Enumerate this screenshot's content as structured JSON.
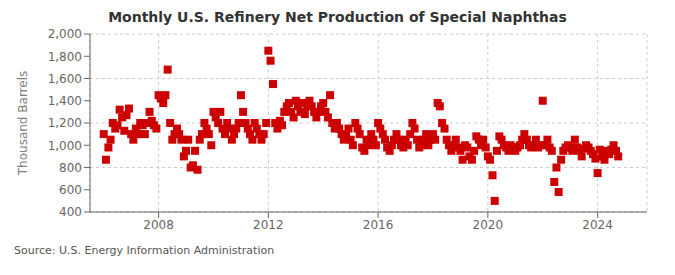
{
  "chart_data": {
    "type": "scatter",
    "title": "Monthly U.S. Refinery Net Production of Special Naphthas",
    "ylabel": "Thousand Barrels",
    "annotations": [
      "Source: U.S. Energy Information Administration"
    ],
    "color": "#cc0000",
    "marker": "square",
    "grid": true,
    "xlim": [
      2005.5,
      2025.8
    ],
    "xticks": [
      2008,
      2012,
      2016,
      2020,
      2024
    ],
    "ylim": [
      400,
      2000
    ],
    "yticks": [
      400,
      600,
      800,
      {
        "value": 1000,
        "label": "1,000"
      },
      {
        "value": 1200,
        "label": "1,200"
      },
      {
        "value": 1400,
        "label": "1,400"
      },
      {
        "value": 1600,
        "label": "1,600"
      },
      {
        "value": 1800,
        "label": "1,800"
      },
      {
        "value": 2000,
        "label": "2,000"
      }
    ],
    "x": [
      2006.0,
      2006.08,
      2006.17,
      2006.25,
      2006.33,
      2006.42,
      2006.5,
      2006.58,
      2006.67,
      2006.75,
      2006.83,
      2006.92,
      2007.0,
      2007.08,
      2007.17,
      2007.25,
      2007.33,
      2007.42,
      2007.5,
      2007.58,
      2007.67,
      2007.75,
      2007.83,
      2007.92,
      2008.0,
      2008.08,
      2008.17,
      2008.25,
      2008.33,
      2008.42,
      2008.5,
      2008.58,
      2008.67,
      2008.75,
      2008.83,
      2008.92,
      2009.0,
      2009.08,
      2009.17,
      2009.25,
      2009.33,
      2009.42,
      2009.5,
      2009.58,
      2009.67,
      2009.75,
      2009.83,
      2009.92,
      2010.0,
      2010.08,
      2010.17,
      2010.25,
      2010.33,
      2010.42,
      2010.5,
      2010.58,
      2010.67,
      2010.75,
      2010.83,
      2010.92,
      2011.0,
      2011.08,
      2011.17,
      2011.25,
      2011.33,
      2011.42,
      2011.5,
      2011.58,
      2011.67,
      2011.75,
      2011.83,
      2011.92,
      2012.0,
      2012.08,
      2012.17,
      2012.25,
      2012.33,
      2012.42,
      2012.5,
      2012.58,
      2012.67,
      2012.75,
      2012.83,
      2012.92,
      2013.0,
      2013.08,
      2013.17,
      2013.25,
      2013.33,
      2013.42,
      2013.5,
      2013.58,
      2013.67,
      2013.75,
      2013.83,
      2013.92,
      2014.0,
      2014.08,
      2014.17,
      2014.25,
      2014.33,
      2014.42,
      2014.5,
      2014.58,
      2014.67,
      2014.75,
      2014.83,
      2014.92,
      2015.0,
      2015.08,
      2015.17,
      2015.25,
      2015.33,
      2015.42,
      2015.5,
      2015.58,
      2015.67,
      2015.75,
      2015.83,
      2015.92,
      2016.0,
      2016.08,
      2016.17,
      2016.25,
      2016.33,
      2016.42,
      2016.5,
      2016.58,
      2016.67,
      2016.75,
      2016.83,
      2016.92,
      2017.0,
      2017.08,
      2017.17,
      2017.25,
      2017.33,
      2017.42,
      2017.5,
      2017.58,
      2017.67,
      2017.75,
      2017.83,
      2017.92,
      2018.0,
      2018.08,
      2018.17,
      2018.25,
      2018.33,
      2018.42,
      2018.5,
      2018.58,
      2018.67,
      2018.75,
      2018.83,
      2018.92,
      2019.0,
      2019.08,
      2019.17,
      2019.25,
      2019.33,
      2019.42,
      2019.5,
      2019.58,
      2019.67,
      2019.75,
      2019.83,
      2019.92,
      2020.0,
      2020.08,
      2020.17,
      2020.25,
      2020.33,
      2020.42,
      2020.5,
      2020.58,
      2020.67,
      2020.75,
      2020.83,
      2020.92,
      2021.0,
      2021.08,
      2021.17,
      2021.25,
      2021.33,
      2021.42,
      2021.5,
      2021.58,
      2021.67,
      2021.75,
      2021.83,
      2021.92,
      2022.0,
      2022.08,
      2022.17,
      2022.25,
      2022.33,
      2022.42,
      2022.5,
      2022.58,
      2022.67,
      2022.75,
      2022.83,
      2022.92,
      2023.0,
      2023.08,
      2023.17,
      2023.25,
      2023.33,
      2023.42,
      2023.5,
      2023.58,
      2023.67,
      2023.75,
      2023.83,
      2023.92,
      2024.0,
      2024.08,
      2024.17,
      2024.25,
      2024.33,
      2024.42,
      2024.5,
      2024.58,
      2024.67,
      2024.75
    ],
    "values": [
      1100,
      870,
      980,
      1050,
      1200,
      1150,
      1180,
      1320,
      1250,
      1130,
      1270,
      1330,
      1100,
      1050,
      1150,
      1100,
      1200,
      1180,
      1100,
      1200,
      1300,
      1220,
      1180,
      1150,
      1450,
      1420,
      1380,
      1450,
      1680,
      1200,
      1050,
      1100,
      1150,
      1100,
      1050,
      900,
      950,
      1050,
      800,
      820,
      950,
      780,
      1050,
      1100,
      1200,
      1150,
      1100,
      1000,
      1300,
      1250,
      1200,
      1300,
      1150,
      1100,
      1200,
      1150,
      1050,
      1100,
      1150,
      1200,
      1450,
      1300,
      1200,
      1150,
      1100,
      1050,
      1200,
      1150,
      1100,
      1050,
      1100,
      1200,
      1850,
      1760,
      1550,
      1200,
      1150,
      1220,
      1180,
      1300,
      1350,
      1380,
      1300,
      1250,
      1400,
      1350,
      1300,
      1380,
      1280,
      1350,
      1400,
      1350,
      1300,
      1250,
      1300,
      1350,
      1380,
      1300,
      1250,
      1450,
      1200,
      1150,
      1200,
      1150,
      1100,
      1050,
      1100,
      1150,
      1050,
      1000,
      1200,
      1150,
      1100,
      980,
      950,
      1050,
      1000,
      1100,
      1050,
      1000,
      1200,
      1150,
      1100,
      1050,
      980,
      950,
      1000,
      1050,
      1100,
      1050,
      1000,
      980,
      1050,
      1000,
      1100,
      1200,
      1150,
      1050,
      980,
      1000,
      1050,
      1100,
      1000,
      1050,
      1100,
      1050,
      1380,
      1350,
      1200,
      1150,
      1050,
      1000,
      950,
      1000,
      1050,
      980,
      950,
      870,
      1000,
      980,
      900,
      870,
      950,
      1080,
      1050,
      1000,
      1050,
      980,
      900,
      870,
      730,
      500,
      950,
      1080,
      1050,
      1000,
      980,
      950,
      1000,
      980,
      950,
      980,
      1000,
      1050,
      1100,
      1050,
      1000,
      980,
      1000,
      1050,
      980,
      1000,
      1400,
      1000,
      1050,
      980,
      950,
      670,
      800,
      580,
      870,
      950,
      980,
      1000,
      980,
      950,
      1050,
      980,
      950,
      900,
      970,
      1000,
      980,
      950,
      920,
      880,
      750,
      960,
      900,
      870,
      950,
      920,
      960,
      1000,
      950,
      900
    ]
  }
}
